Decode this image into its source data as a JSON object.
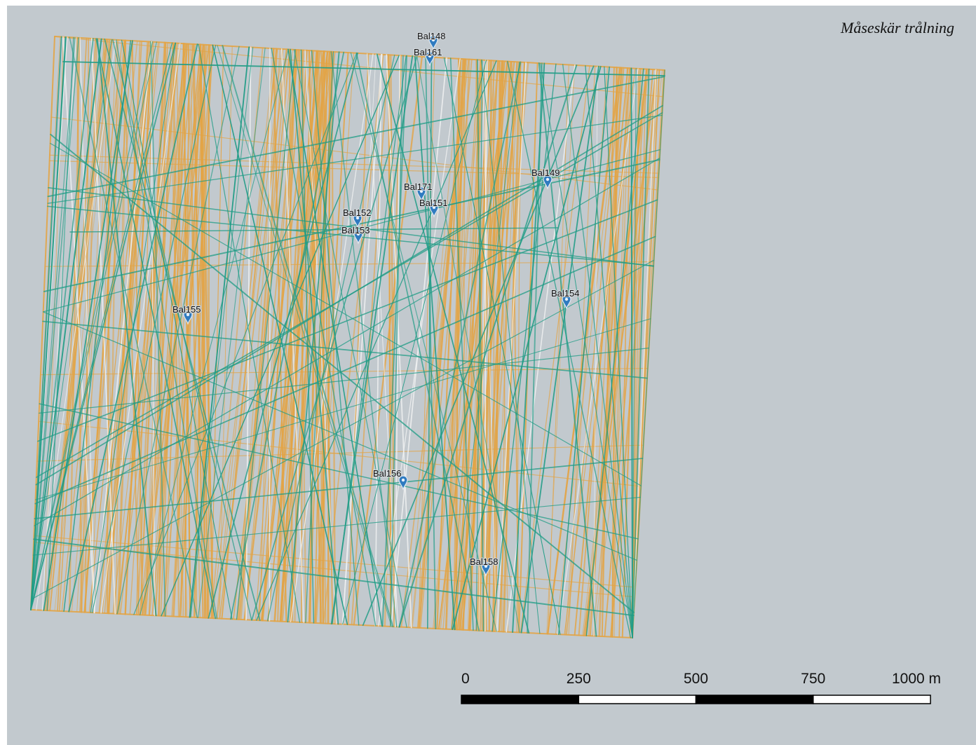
{
  "map": {
    "title": "Måseskär trålning",
    "colors": {
      "background": "#c2c9ce",
      "trawl_orange": "#e3a445",
      "trawl_green": "#1f9c86",
      "trawl_white": "#f2f4f4",
      "marker_blue": "#2f7bc0"
    },
    "marker_icon": "map-pin-icon",
    "stations": [
      {
        "id": "Bal148"
      },
      {
        "id": "Bal161"
      },
      {
        "id": "Bal149"
      },
      {
        "id": "Bal171"
      },
      {
        "id": "Bal151"
      },
      {
        "id": "Bal152"
      },
      {
        "id": "Bal153"
      },
      {
        "id": "Bal154"
      },
      {
        "id": "Bal155"
      },
      {
        "id": "Bal156"
      },
      {
        "id": "Bal158"
      }
    ],
    "scale_bar": {
      "ticks": [
        "0",
        "250",
        "500",
        "750",
        "1000 m"
      ]
    }
  }
}
